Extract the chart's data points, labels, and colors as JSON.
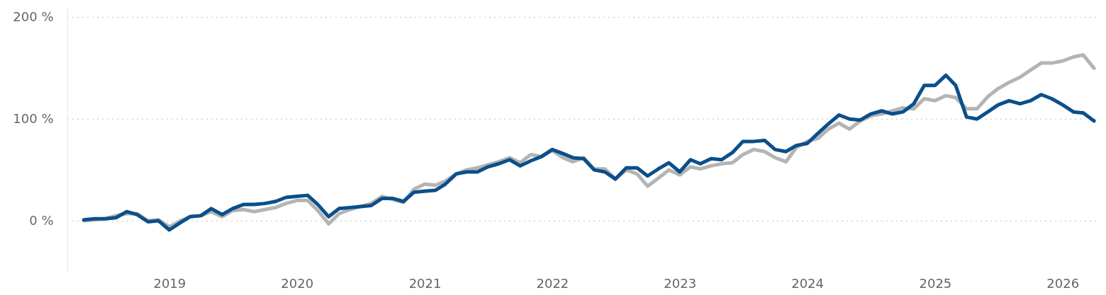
{
  "chart_data": {
    "type": "line",
    "x": [
      "2018-05",
      "2018-06",
      "2018-07",
      "2018-08",
      "2018-09",
      "2018-10",
      "2018-11",
      "2018-12",
      "2019-01",
      "2019-02",
      "2019-03",
      "2019-04",
      "2019-05",
      "2019-06",
      "2019-07",
      "2019-08",
      "2019-09",
      "2019-10",
      "2019-11",
      "2019-12",
      "2020-01",
      "2020-02",
      "2020-03",
      "2020-04",
      "2020-05",
      "2020-06",
      "2020-07",
      "2020-08",
      "2020-09",
      "2020-10",
      "2020-11",
      "2020-12",
      "2021-01",
      "2021-02",
      "2021-03",
      "2021-04",
      "2021-05",
      "2021-06",
      "2021-07",
      "2021-08",
      "2021-09",
      "2021-10",
      "2021-11",
      "2021-12",
      "2022-01",
      "2022-02",
      "2022-03",
      "2022-04",
      "2022-05",
      "2022-06",
      "2022-07",
      "2022-08",
      "2022-09",
      "2022-10",
      "2022-11",
      "2022-12",
      "2023-01",
      "2023-02",
      "2023-03",
      "2023-04",
      "2023-05",
      "2023-06",
      "2023-07",
      "2023-08",
      "2023-09",
      "2023-10",
      "2023-11",
      "2023-12",
      "2024-01",
      "2024-02",
      "2024-03",
      "2024-04",
      "2024-05",
      "2024-06",
      "2024-07",
      "2024-08",
      "2024-09",
      "2024-10",
      "2024-11",
      "2024-12",
      "2025-01",
      "2025-02",
      "2025-03",
      "2025-04",
      "2025-05",
      "2025-06",
      "2025-07",
      "2025-08",
      "2025-09",
      "2025-10",
      "2025-11",
      "2025-12",
      "2026-01",
      "2026-02",
      "2026-03",
      "2026-04"
    ],
    "series": [
      {
        "color": "#0b4f8a",
        "values": [
          1,
          2,
          2,
          3,
          9,
          6,
          -1,
          0,
          -9,
          -2,
          4,
          5,
          12,
          6,
          12,
          16,
          16,
          17,
          19,
          23,
          24,
          25,
          16,
          4,
          12,
          13,
          14,
          15,
          22,
          22,
          19,
          28,
          29,
          30,
          36,
          46,
          48,
          48,
          53,
          56,
          60,
          54,
          59,
          63,
          70,
          66,
          62,
          61,
          50,
          48,
          41,
          52,
          52,
          44,
          51,
          57,
          48,
          60,
          56,
          61,
          60,
          67,
          78,
          78,
          79,
          70,
          68,
          74,
          76,
          86,
          95,
          104,
          100,
          99,
          105,
          108,
          105,
          107,
          115,
          133,
          133,
          143,
          133,
          102,
          100,
          107,
          114,
          118,
          115,
          118,
          124,
          120,
          114,
          107,
          106,
          98
        ]
      },
      {
        "color": "#b4b4b4",
        "values": [
          0,
          1,
          2,
          5,
          7,
          7,
          0,
          1,
          -6,
          0,
          4,
          5,
          9,
          4,
          10,
          11,
          9,
          11,
          13,
          17,
          20,
          20,
          10,
          -3,
          7,
          11,
          14,
          17,
          24,
          21,
          18,
          31,
          36,
          35,
          39,
          46,
          50,
          52,
          55,
          58,
          62,
          57,
          65,
          63,
          69,
          62,
          58,
          62,
          51,
          51,
          41,
          50,
          46,
          34,
          42,
          50,
          45,
          53,
          51,
          54,
          56,
          57,
          65,
          70,
          68,
          62,
          58,
          72,
          78,
          81,
          90,
          96,
          90,
          98,
          103,
          105,
          108,
          111,
          110,
          120,
          118,
          123,
          121,
          110,
          110,
          122,
          130,
          136,
          141,
          148,
          155,
          155,
          157,
          161,
          163,
          150
        ]
      }
    ],
    "xlim": [
      "2018-03-15",
      "2026-04-15"
    ],
    "xticks": [
      {
        "value": "2019",
        "label": "2019"
      },
      {
        "value": "2020",
        "label": "2020"
      },
      {
        "value": "2021",
        "label": "2021"
      },
      {
        "value": "2022",
        "label": "2022"
      },
      {
        "value": "2023",
        "label": "2023"
      },
      {
        "value": "2024",
        "label": "2024"
      },
      {
        "value": "2025",
        "label": "2025"
      },
      {
        "value": "2026",
        "label": "2026"
      }
    ],
    "ylim": [
      -50,
      210
    ],
    "yticks": [
      {
        "value": 0,
        "label": "0 %"
      },
      {
        "value": 100,
        "label": "100 %"
      },
      {
        "value": 200,
        "label": "200 %"
      }
    ],
    "grid": "y",
    "marker": "none",
    "line_style": "solid"
  }
}
